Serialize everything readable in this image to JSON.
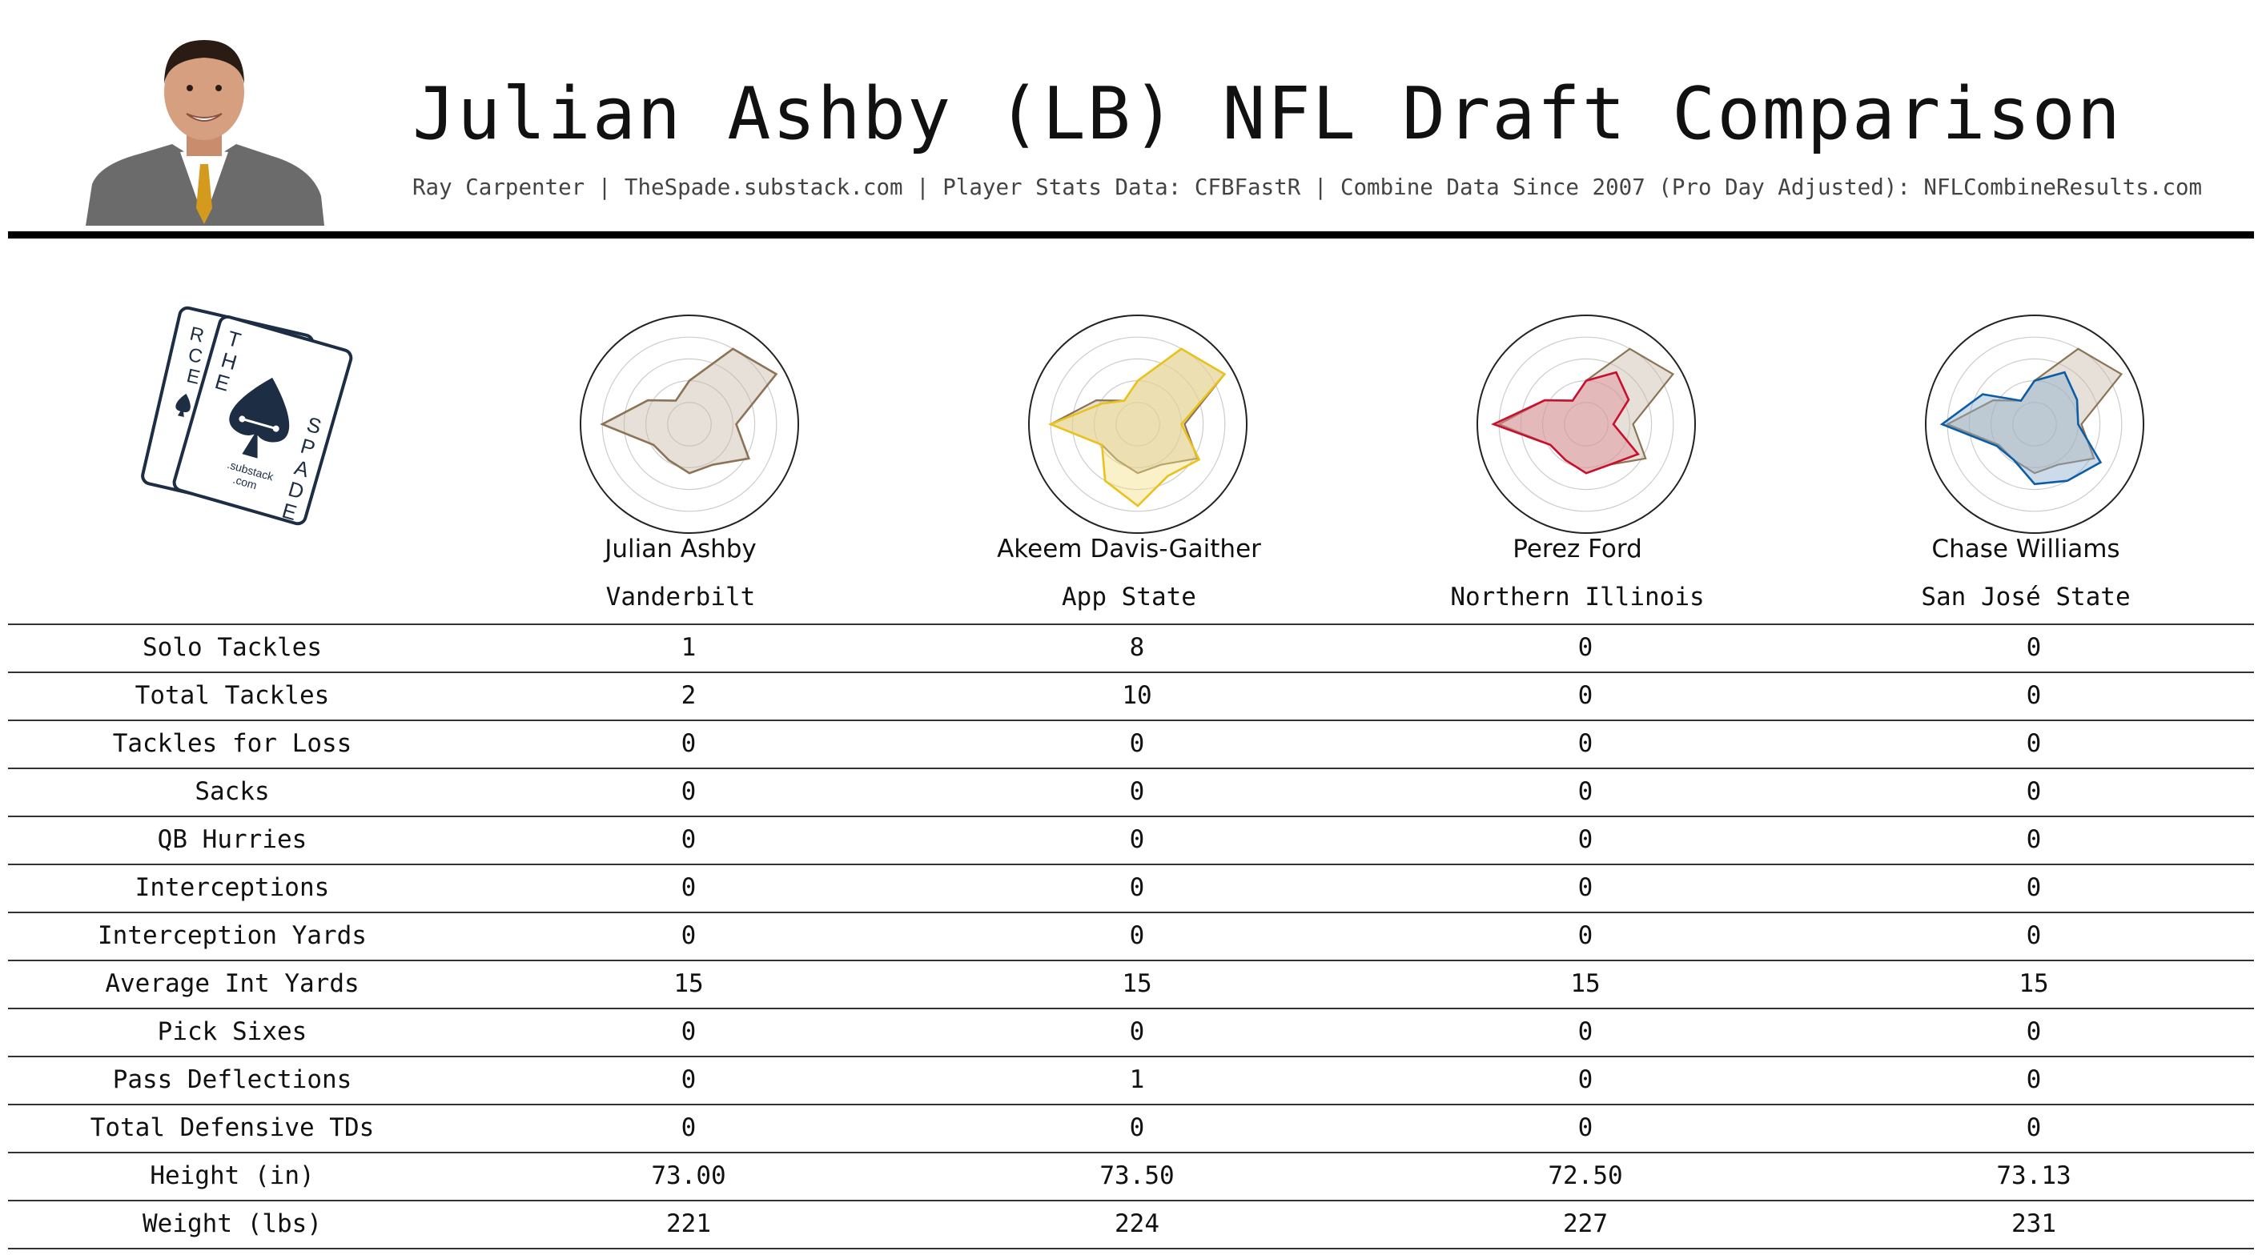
{
  "header": {
    "title": "Julian Ashby (LB) NFL Draft Comparison",
    "subtitle": "Ray Carpenter | TheSpade.substack.com | Player Stats Data: CFBFastR | Combine Data Since 2007 (Pro Day Adjusted): NFLCombineResults.com"
  },
  "logo": {
    "back_card_text": [
      "R",
      "C",
      "E"
    ],
    "front_card_text": [
      "T",
      "H",
      "E",
      "S",
      "P",
      "A",
      "D",
      "E"
    ],
    "card_subtext": [
      ".substack",
      ".com"
    ],
    "icon": "spade-icon"
  },
  "photo": {
    "icon": "player-headshot",
    "suit_color": "#6b6b6b",
    "tie_color": "#d39a1e"
  },
  "colors": {
    "baseline_fill": "#c8bba9",
    "baseline_stroke": "#8b7355",
    "grid": "#cccccc"
  },
  "players": [
    {
      "name": "Julian Ashby",
      "school": "Vanderbilt",
      "color": "#8b7355",
      "fill": "#c8bba9"
    },
    {
      "name": "Akeem Davis-Gaither",
      "school": "App State",
      "color": "#e9c21b",
      "fill": "#f3df84"
    },
    {
      "name": "Perez Ford",
      "school": "Northern Illinois",
      "color": "#c8102e",
      "fill": "#e08a97"
    },
    {
      "name": "Chase Williams",
      "school": "San José State",
      "color": "#0d5ca6",
      "fill": "#8fb0cf"
    }
  ],
  "table": {
    "rows": [
      {
        "label": "Solo Tackles",
        "values": [
          "1",
          "8",
          "0",
          "0"
        ]
      },
      {
        "label": "Total Tackles",
        "values": [
          "2",
          "10",
          "0",
          "0"
        ]
      },
      {
        "label": "Tackles for Loss",
        "values": [
          "0",
          "0",
          "0",
          "0"
        ]
      },
      {
        "label": "Sacks",
        "values": [
          "0",
          "0",
          "0",
          "0"
        ]
      },
      {
        "label": "QB Hurries",
        "values": [
          "0",
          "0",
          "0",
          "0"
        ]
      },
      {
        "label": "Interceptions",
        "values": [
          "0",
          "0",
          "0",
          "0"
        ]
      },
      {
        "label": "Interception Yards",
        "values": [
          "0",
          "0",
          "0",
          "0"
        ]
      },
      {
        "label": "Average Int Yards",
        "values": [
          "15",
          "15",
          "15",
          "15"
        ]
      },
      {
        "label": "Pick Sixes",
        "values": [
          "0",
          "0",
          "0",
          "0"
        ]
      },
      {
        "label": "Pass Deflections",
        "values": [
          "0",
          "1",
          "0",
          "0"
        ]
      },
      {
        "label": "Total Defensive TDs",
        "values": [
          "0",
          "0",
          "0",
          "0"
        ]
      },
      {
        "label": "Height (in)",
        "values": [
          "73.00",
          "73.50",
          "72.50",
          "73.13"
        ]
      },
      {
        "label": "Weight (lbs)",
        "values": [
          "221",
          "224",
          "227",
          "231"
        ]
      }
    ]
  },
  "chart_data": [
    {
      "type": "radar",
      "player": "Julian Ashby",
      "rlim": [
        0,
        100
      ],
      "grid_rings": 5,
      "series": [
        {
          "role": "player",
          "color": "#8b7355",
          "values": [
            40,
            80,
            92,
            43,
            63,
            43,
            45,
            38,
            38,
            80,
            44,
            25
          ]
        }
      ]
    },
    {
      "type": "radar",
      "player": "Akeem Davis-Gaither",
      "rlim": [
        0,
        100
      ],
      "grid_rings": 5,
      "series": [
        {
          "role": "player",
          "color": "#e9c21b",
          "values": [
            40,
            80,
            92,
            40,
            65,
            55,
            75,
            60,
            38,
            80,
            38,
            25
          ]
        },
        {
          "role": "baseline",
          "name": "Julian Ashby",
          "color": "#8b7355",
          "values": [
            40,
            80,
            92,
            43,
            63,
            43,
            45,
            38,
            38,
            80,
            44,
            25
          ]
        }
      ]
    },
    {
      "type": "radar",
      "player": "Perez Ford",
      "rlim": [
        0,
        100
      ],
      "grid_rings": 5,
      "series": [
        {
          "role": "player",
          "color": "#c8102e",
          "values": [
            40,
            55,
            45,
            25,
            55,
            43,
            45,
            38,
            38,
            85,
            44,
            25
          ]
        },
        {
          "role": "baseline",
          "name": "Julian Ashby",
          "color": "#8b7355",
          "values": [
            40,
            80,
            92,
            43,
            63,
            43,
            45,
            38,
            38,
            80,
            44,
            25
          ]
        }
      ]
    },
    {
      "type": "radar",
      "player": "Chase Williams",
      "rlim": [
        0,
        100
      ],
      "grid_rings": 5,
      "series": [
        {
          "role": "player",
          "color": "#0d5ca6",
          "values": [
            40,
            55,
            45,
            40,
            70,
            60,
            55,
            38,
            40,
            85,
            55,
            25
          ]
        },
        {
          "role": "baseline",
          "name": "Julian Ashby",
          "color": "#8b7355",
          "values": [
            40,
            80,
            92,
            43,
            63,
            43,
            45,
            38,
            38,
            80,
            44,
            25
          ]
        }
      ]
    }
  ]
}
